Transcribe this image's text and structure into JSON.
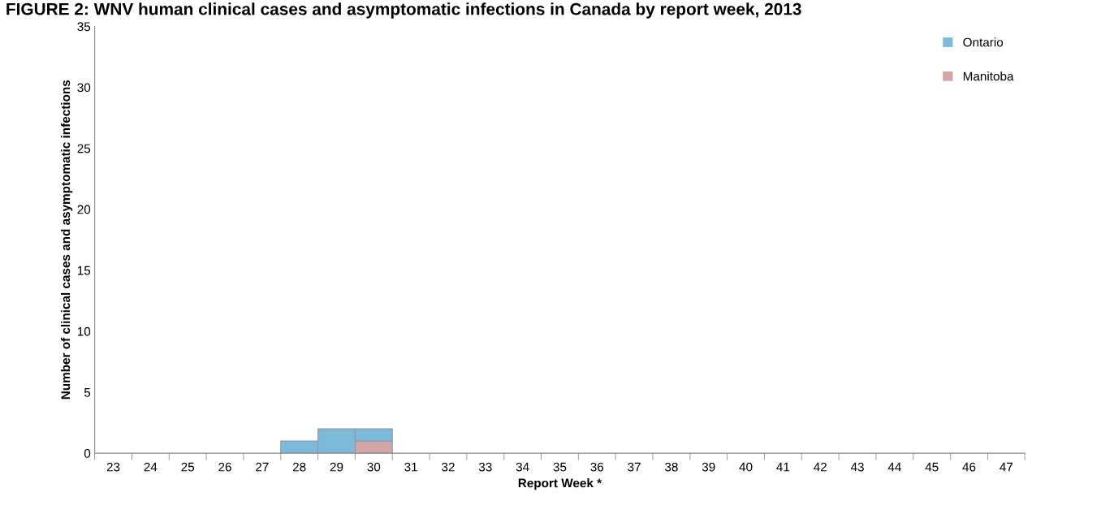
{
  "chart_data": {
    "type": "bar",
    "title": "FIGURE 2: WNV human clinical cases and asymptomatic infections in Canada by report week, 2013",
    "xlabel": "Report Week *",
    "ylabel": "Number of clinical cases and asymptomatic infections",
    "categories": [
      "23",
      "24",
      "25",
      "26",
      "27",
      "28",
      "29",
      "30",
      "31",
      "32",
      "33",
      "34",
      "35",
      "36",
      "37",
      "38",
      "39",
      "40",
      "41",
      "42",
      "43",
      "44",
      "45",
      "46",
      "47"
    ],
    "stacked": true,
    "series": [
      {
        "name": "Manitoba",
        "color": "#d4a5a5",
        "values": [
          0,
          0,
          0,
          0,
          0,
          0,
          0,
          1,
          0,
          0,
          0,
          0,
          0,
          0,
          0,
          0,
          0,
          0,
          0,
          0,
          0,
          0,
          0,
          0,
          0
        ]
      },
      {
        "name": "Ontario",
        "color": "#7db9d9",
        "values": [
          0,
          0,
          0,
          0,
          0,
          1,
          2,
          1,
          0,
          0,
          0,
          0,
          0,
          0,
          0,
          0,
          0,
          0,
          0,
          0,
          0,
          0,
          0,
          0,
          0
        ]
      }
    ],
    "ylim": [
      0,
      35
    ],
    "yticks": [
      0,
      5,
      10,
      15,
      20,
      25,
      30,
      35
    ],
    "grid": false,
    "legend": "top right"
  }
}
